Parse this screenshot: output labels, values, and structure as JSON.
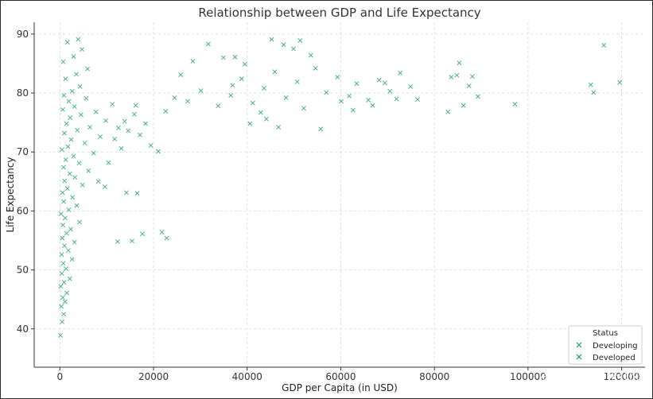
{
  "chart_data": {
    "type": "scatter",
    "title": "Relationship between GDP and Life Expectancy",
    "xlabel": "GDP per Capita (in USD)",
    "ylabel": "Life Expectancy",
    "xlim": [
      -5500,
      125000
    ],
    "ylim": [
      33.5,
      92
    ],
    "xticks": [
      0,
      20000,
      40000,
      60000,
      80000,
      100000,
      120000
    ],
    "yticks": [
      40,
      50,
      60,
      70,
      80,
      90
    ],
    "grid": true,
    "marker": "x",
    "legend": {
      "title": "Status",
      "placement": "lower-right",
      "entries": [
        "Developing",
        "Developed"
      ]
    },
    "series": [
      {
        "name": "Developing",
        "color": "#1b9e77",
        "points": [
          [
            120,
            38.9
          ],
          [
            450,
            41.2
          ],
          [
            800,
            42.5
          ],
          [
            300,
            43.8
          ],
          [
            1100,
            44.6
          ],
          [
            600,
            45.3
          ],
          [
            1500,
            46.1
          ],
          [
            200,
            47.2
          ],
          [
            900,
            47.9
          ],
          [
            2100,
            48.5
          ],
          [
            400,
            49.4
          ],
          [
            1300,
            50.2
          ],
          [
            700,
            51.1
          ],
          [
            2600,
            51.8
          ],
          [
            350,
            52.6
          ],
          [
            1800,
            53.3
          ],
          [
            950,
            54.1
          ],
          [
            3100,
            54.7
          ],
          [
            500,
            55.4
          ],
          [
            1400,
            56.2
          ],
          [
            2300,
            56.9
          ],
          [
            650,
            57.6
          ],
          [
            4200,
            58.1
          ],
          [
            1100,
            58.8
          ],
          [
            250,
            59.5
          ],
          [
            1900,
            60.2
          ],
          [
            3600,
            60.9
          ],
          [
            800,
            61.6
          ],
          [
            2700,
            62.3
          ],
          [
            550,
            63.1
          ],
          [
            1600,
            63.8
          ],
          [
            4800,
            64.4
          ],
          [
            1000,
            65.1
          ],
          [
            3200,
            65.7
          ],
          [
            2100,
            66.3
          ],
          [
            6100,
            66.8
          ],
          [
            750,
            67.4
          ],
          [
            4100,
            68.1
          ],
          [
            1250,
            68.7
          ],
          [
            2900,
            69.3
          ],
          [
            7200,
            69.8
          ],
          [
            450,
            70.4
          ],
          [
            1700,
            70.9
          ],
          [
            5300,
            71.5
          ],
          [
            2400,
            72.1
          ],
          [
            8600,
            72.6
          ],
          [
            950,
            73.2
          ],
          [
            3700,
            73.7
          ],
          [
            6400,
            74.2
          ],
          [
            1400,
            74.8
          ],
          [
            9800,
            75.3
          ],
          [
            2200,
            75.8
          ],
          [
            4500,
            76.3
          ],
          [
            7700,
            76.8
          ],
          [
            600,
            77.2
          ],
          [
            3100,
            77.7
          ],
          [
            11200,
            78.1
          ],
          [
            1900,
            78.6
          ],
          [
            5600,
            79.1
          ],
          [
            850,
            79.6
          ],
          [
            12500,
            74.1
          ],
          [
            13800,
            75.2
          ],
          [
            14600,
            73.6
          ],
          [
            15900,
            76.4
          ],
          [
            17100,
            72.9
          ],
          [
            18300,
            74.8
          ],
          [
            16200,
            77.9
          ],
          [
            19400,
            71.1
          ],
          [
            13100,
            70.6
          ],
          [
            11700,
            72.2
          ],
          [
            2600,
            80.3
          ],
          [
            4300,
            81.1
          ],
          [
            1200,
            82.4
          ],
          [
            3500,
            83.2
          ],
          [
            5900,
            84.1
          ],
          [
            700,
            85.3
          ],
          [
            2900,
            86.2
          ],
          [
            4700,
            87.4
          ],
          [
            1600,
            88.6
          ],
          [
            3900,
            89.1
          ],
          [
            21000,
            70.1
          ],
          [
            21800,
            56.4
          ],
          [
            22800,
            55.4
          ],
          [
            15400,
            54.9
          ],
          [
            17600,
            56.1
          ],
          [
            12300,
            54.8
          ],
          [
            14200,
            63.1
          ],
          [
            16500,
            63.0
          ],
          [
            8200,
            65.0
          ],
          [
            9600,
            64.1
          ],
          [
            10400,
            68.2
          ],
          [
            24500,
            79.2
          ],
          [
            27300,
            78.6
          ],
          [
            30100,
            80.4
          ],
          [
            33800,
            77.8
          ],
          [
            36900,
            81.3
          ],
          [
            22600,
            76.9
          ],
          [
            25800,
            83.1
          ],
          [
            28400,
            85.4
          ],
          [
            31700,
            88.3
          ]
        ]
      },
      {
        "name": "Developed",
        "color": "#1a9870",
        "points": [
          [
            36500,
            79.6
          ],
          [
            38800,
            82.4
          ],
          [
            41200,
            78.3
          ],
          [
            43600,
            80.8
          ],
          [
            45900,
            83.6
          ],
          [
            48300,
            79.2
          ],
          [
            50700,
            81.9
          ],
          [
            52100,
            77.4
          ],
          [
            54600,
            84.2
          ],
          [
            56900,
            80.1
          ],
          [
            59300,
            82.7
          ],
          [
            61800,
            79.5
          ],
          [
            63400,
            81.6
          ],
          [
            65900,
            78.8
          ],
          [
            68200,
            82.2
          ],
          [
            70500,
            80.3
          ],
          [
            72700,
            83.4
          ],
          [
            74900,
            81.1
          ],
          [
            76400,
            78.9
          ],
          [
            82900,
            76.8
          ],
          [
            83600,
            82.7
          ],
          [
            84800,
            83.0
          ],
          [
            85300,
            85.1
          ],
          [
            86200,
            77.9
          ],
          [
            87400,
            81.2
          ],
          [
            88100,
            82.8
          ],
          [
            89300,
            79.4
          ],
          [
            97200,
            78.1
          ],
          [
            113400,
            81.4
          ],
          [
            114000,
            80.1
          ],
          [
            116200,
            88.1
          ],
          [
            119600,
            81.8
          ],
          [
            45200,
            89.1
          ],
          [
            47800,
            88.2
          ],
          [
            49900,
            87.5
          ],
          [
            51300,
            88.9
          ],
          [
            53600,
            86.4
          ],
          [
            44100,
            75.6
          ],
          [
            46700,
            74.2
          ],
          [
            55700,
            73.9
          ],
          [
            42900,
            76.7
          ],
          [
            39500,
            84.9
          ],
          [
            37400,
            86.1
          ],
          [
            34900,
            86.0
          ],
          [
            60100,
            78.6
          ],
          [
            62600,
            77.1
          ],
          [
            66800,
            77.9
          ],
          [
            69400,
            81.7
          ],
          [
            71900,
            79.0
          ],
          [
            40600,
            74.8
          ]
        ]
      }
    ]
  },
  "watermark": "@稀土掘金技术社区"
}
